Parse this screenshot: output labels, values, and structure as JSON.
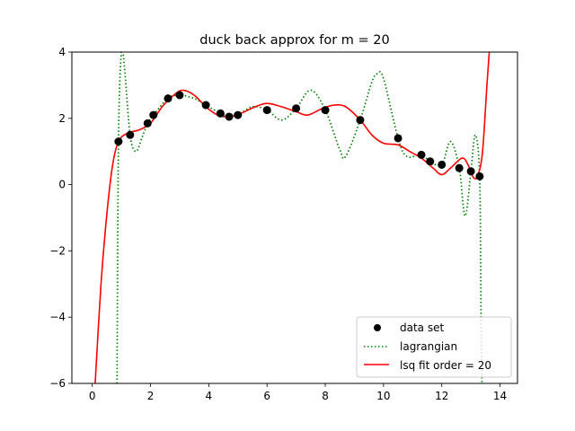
{
  "chart_data": {
    "type": "line",
    "title": "duck back approx for m = 20",
    "xlabel": "",
    "ylabel": "",
    "xlim": [
      -0.7,
      14.6
    ],
    "ylim": [
      -6,
      4
    ],
    "x_ticks": [
      0,
      2,
      4,
      6,
      8,
      10,
      12,
      14
    ],
    "y_ticks": [
      -6,
      -4,
      -2,
      0,
      2,
      4
    ],
    "x_tick_labels": [
      "0",
      "2",
      "4",
      "6",
      "8",
      "10",
      "12",
      "14"
    ],
    "y_tick_labels": [
      "−6",
      "−4",
      "−2",
      "0",
      "2",
      "4"
    ],
    "grid": false,
    "legend_position": "lower-right",
    "series": [
      {
        "name": "data set",
        "kind": "scatter",
        "color": "#000000",
        "points": [
          [
            0.9,
            1.3
          ],
          [
            1.3,
            1.5
          ],
          [
            1.9,
            1.85
          ],
          [
            2.1,
            2.1
          ],
          [
            2.6,
            2.6
          ],
          [
            3.0,
            2.7
          ],
          [
            3.9,
            2.4
          ],
          [
            4.4,
            2.15
          ],
          [
            4.7,
            2.05
          ],
          [
            5.0,
            2.1
          ],
          [
            6.0,
            2.25
          ],
          [
            7.0,
            2.3
          ],
          [
            8.0,
            2.25
          ],
          [
            9.2,
            1.95
          ],
          [
            10.5,
            1.4
          ],
          [
            11.3,
            0.9
          ],
          [
            11.6,
            0.7
          ],
          [
            12.0,
            0.6
          ],
          [
            12.6,
            0.5
          ],
          [
            13.0,
            0.4
          ],
          [
            13.3,
            0.25
          ]
        ]
      },
      {
        "name": "lagrangian",
        "kind": "line",
        "color": "#008000",
        "dash": "dotted",
        "points": [
          [
            0.85,
            -6.0
          ],
          [
            0.9,
            1.3
          ],
          [
            1.0,
            4.0
          ],
          [
            1.1,
            3.6
          ],
          [
            1.3,
            1.5
          ],
          [
            1.5,
            1.0
          ],
          [
            1.7,
            1.4
          ],
          [
            1.9,
            1.85
          ],
          [
            2.1,
            2.1
          ],
          [
            2.6,
            2.6
          ],
          [
            3.0,
            2.7
          ],
          [
            3.5,
            2.6
          ],
          [
            3.9,
            2.4
          ],
          [
            4.4,
            2.15
          ],
          [
            4.7,
            2.05
          ],
          [
            5.0,
            2.1
          ],
          [
            5.5,
            2.35
          ],
          [
            6.0,
            2.25
          ],
          [
            6.5,
            1.95
          ],
          [
            7.0,
            2.3
          ],
          [
            7.5,
            2.85
          ],
          [
            8.0,
            2.25
          ],
          [
            8.5,
            1.05
          ],
          [
            8.7,
            0.85
          ],
          [
            9.2,
            1.95
          ],
          [
            9.6,
            3.1
          ],
          [
            9.8,
            3.35
          ],
          [
            10.0,
            3.2
          ],
          [
            10.5,
            1.4
          ],
          [
            10.8,
            0.85
          ],
          [
            11.3,
            0.9
          ],
          [
            11.6,
            0.7
          ],
          [
            12.0,
            0.6
          ],
          [
            12.3,
            1.3
          ],
          [
            12.6,
            0.5
          ],
          [
            12.8,
            -0.95
          ],
          [
            13.0,
            0.4
          ],
          [
            13.15,
            1.5
          ],
          [
            13.3,
            0.25
          ],
          [
            13.35,
            -4.0
          ],
          [
            13.38,
            -6.0
          ]
        ]
      },
      {
        "name": "lsq fit order = 20",
        "kind": "line",
        "color": "#ff0000",
        "dash": "solid",
        "points": [
          [
            0.1,
            -6.0
          ],
          [
            0.3,
            -3.0
          ],
          [
            0.5,
            -0.9
          ],
          [
            0.7,
            0.6
          ],
          [
            0.9,
            1.3
          ],
          [
            1.2,
            1.55
          ],
          [
            1.6,
            1.65
          ],
          [
            2.0,
            1.85
          ],
          [
            2.4,
            2.35
          ],
          [
            2.8,
            2.7
          ],
          [
            3.1,
            2.85
          ],
          [
            3.5,
            2.7
          ],
          [
            3.9,
            2.35
          ],
          [
            4.3,
            2.1
          ],
          [
            4.7,
            2.05
          ],
          [
            5.1,
            2.15
          ],
          [
            5.6,
            2.35
          ],
          [
            6.0,
            2.45
          ],
          [
            6.5,
            2.35
          ],
          [
            7.0,
            2.2
          ],
          [
            7.4,
            2.1
          ],
          [
            7.9,
            2.3
          ],
          [
            8.3,
            2.4
          ],
          [
            8.7,
            2.35
          ],
          [
            9.2,
            1.95
          ],
          [
            9.6,
            1.5
          ],
          [
            10.0,
            1.25
          ],
          [
            10.5,
            1.2
          ],
          [
            10.9,
            1.0
          ],
          [
            11.3,
            0.8
          ],
          [
            11.7,
            0.5
          ],
          [
            12.0,
            0.3
          ],
          [
            12.3,
            0.5
          ],
          [
            12.7,
            0.8
          ],
          [
            12.9,
            0.6
          ],
          [
            13.1,
            0.2
          ],
          [
            13.25,
            0.3
          ],
          [
            13.4,
            1.0
          ],
          [
            13.55,
            3.0
          ],
          [
            13.63,
            4.0
          ]
        ]
      }
    ]
  }
}
